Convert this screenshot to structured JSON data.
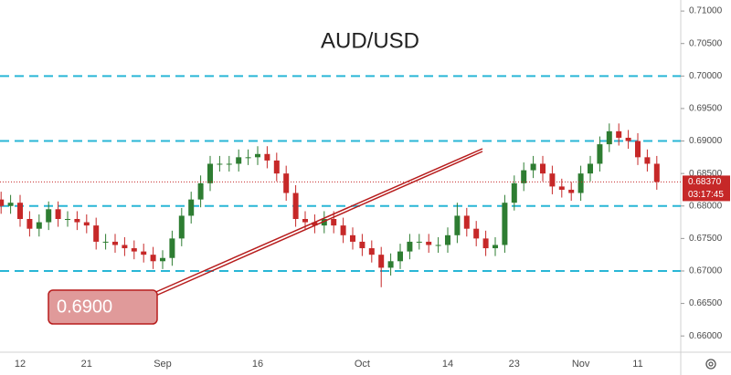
{
  "chart_data": {
    "type": "candlestick",
    "title": "AUD/USD",
    "categories": [
      null,
      null,
      "12",
      null,
      null,
      null,
      null,
      null,
      null,
      "21",
      null,
      null,
      null,
      null,
      null,
      null,
      null,
      "Sep",
      null,
      null,
      null,
      null,
      null,
      null,
      null,
      null,
      null,
      "16",
      null,
      null,
      null,
      null,
      null,
      null,
      null,
      null,
      null,
      null,
      "Oct",
      null,
      null,
      null,
      null,
      null,
      null,
      null,
      null,
      "14",
      null,
      null,
      null,
      null,
      null,
      null,
      "23",
      null,
      null,
      null,
      null,
      null,
      null,
      "Nov",
      null,
      null,
      null,
      null,
      null,
      "11",
      null,
      null
    ],
    "open": [
      0.681,
      0.68,
      0.6805,
      0.678,
      0.6765,
      0.6775,
      0.6795,
      0.678,
      0.678,
      0.6775,
      0.677,
      0.6745,
      0.6745,
      0.674,
      0.6735,
      0.673,
      0.6725,
      0.6715,
      0.672,
      0.675,
      0.6785,
      0.681,
      0.6835,
      0.6865,
      0.6865,
      0.6865,
      0.6875,
      0.6875,
      0.688,
      0.687,
      0.685,
      0.682,
      0.678,
      0.6775,
      0.677,
      0.678,
      0.677,
      0.6755,
      0.6745,
      0.6735,
      0.6725,
      0.6705,
      0.6715,
      0.673,
      0.6745,
      0.6745,
      0.674,
      0.674,
      0.6755,
      0.6785,
      0.6765,
      0.675,
      0.6735,
      0.674,
      0.6805,
      0.6835,
      0.6855,
      0.6865,
      0.685,
      0.683,
      0.6825,
      0.682,
      0.685,
      0.6865,
      0.6895,
      0.6915,
      0.6905,
      0.69,
      0.6875,
      0.6865
    ],
    "high": [
      0.6822,
      0.6817,
      0.6817,
      0.6792,
      0.6787,
      0.6807,
      0.6807,
      0.6792,
      0.6792,
      0.6787,
      0.6782,
      0.6757,
      0.6757,
      0.6752,
      0.6747,
      0.6742,
      0.6737,
      0.6732,
      0.6762,
      0.6797,
      0.6822,
      0.6847,
      0.6877,
      0.6877,
      0.6877,
      0.6887,
      0.6887,
      0.6892,
      0.6892,
      0.6882,
      0.6862,
      0.6832,
      0.6792,
      0.6787,
      0.6792,
      0.6792,
      0.6782,
      0.6767,
      0.6757,
      0.6747,
      0.6737,
      0.6727,
      0.6742,
      0.6757,
      0.6757,
      0.6757,
      0.6752,
      0.6767,
      0.6805,
      0.6797,
      0.6777,
      0.6762,
      0.6752,
      0.6817,
      0.6847,
      0.6867,
      0.6877,
      0.6877,
      0.6862,
      0.6842,
      0.6837,
      0.6862,
      0.6877,
      0.6907,
      0.6927,
      0.6927,
      0.6917,
      0.6912,
      0.6887,
      0.6877
    ],
    "low": [
      0.6788,
      0.6788,
      0.6768,
      0.6753,
      0.6753,
      0.6763,
      0.6768,
      0.6768,
      0.6763,
      0.6758,
      0.6733,
      0.6733,
      0.6728,
      0.6723,
      0.6718,
      0.6713,
      0.6703,
      0.6703,
      0.6708,
      0.6738,
      0.6773,
      0.6798,
      0.6823,
      0.6853,
      0.6853,
      0.6853,
      0.6863,
      0.6863,
      0.6858,
      0.6838,
      0.6808,
      0.6768,
      0.6763,
      0.6758,
      0.6758,
      0.6758,
      0.6743,
      0.6733,
      0.6723,
      0.6713,
      0.6675,
      0.6693,
      0.6703,
      0.6718,
      0.6733,
      0.6728,
      0.6728,
      0.6728,
      0.6743,
      0.6753,
      0.6738,
      0.6723,
      0.6723,
      0.6728,
      0.6793,
      0.6823,
      0.6843,
      0.6838,
      0.6818,
      0.6813,
      0.6808,
      0.6808,
      0.6838,
      0.6853,
      0.6883,
      0.6893,
      0.6888,
      0.6863,
      0.6853,
      0.6825
    ],
    "close": [
      0.68,
      0.6805,
      0.678,
      0.6765,
      0.6775,
      0.6795,
      0.678,
      0.678,
      0.6775,
      0.677,
      0.6745,
      0.6745,
      0.674,
      0.6735,
      0.673,
      0.6725,
      0.6715,
      0.672,
      0.675,
      0.6785,
      0.681,
      0.6835,
      0.6865,
      0.6865,
      0.6865,
      0.6875,
      0.6875,
      0.688,
      0.687,
      0.685,
      0.682,
      0.678,
      0.6775,
      0.677,
      0.678,
      0.677,
      0.6755,
      0.6745,
      0.6735,
      0.6725,
      0.6705,
      0.6715,
      0.673,
      0.6745,
      0.6745,
      0.674,
      0.674,
      0.6755,
      0.6785,
      0.6765,
      0.675,
      0.6735,
      0.674,
      0.6805,
      0.6835,
      0.6855,
      0.6865,
      0.685,
      0.683,
      0.6825,
      0.682,
      0.685,
      0.6865,
      0.6895,
      0.6915,
      0.6905,
      0.69,
      0.6875,
      0.6865,
      0.6837
    ],
    "up_color": "#2e7d32",
    "down_color": "#c62828",
    "ylim": [
      0.6575,
      0.7117
    ],
    "yticks": [
      {
        "value": 0.66,
        "label": "0.66000"
      },
      {
        "value": 0.665,
        "label": "0.66500"
      },
      {
        "value": 0.67,
        "label": "0.67000"
      },
      {
        "value": 0.675,
        "label": "0.67500"
      },
      {
        "value": 0.68,
        "label": "0.68000"
      },
      {
        "value": 0.685,
        "label": "0.68500"
      },
      {
        "value": 0.69,
        "label": "0.69000"
      },
      {
        "value": 0.695,
        "label": "0.69500"
      },
      {
        "value": 0.7,
        "label": "0.70000"
      },
      {
        "value": 0.705,
        "label": "0.70500"
      },
      {
        "value": 0.71,
        "label": "0.71000"
      }
    ],
    "levels": [
      0.7,
      0.69,
      0.68,
      0.67
    ],
    "level_color": "#29b6d6",
    "last_price": {
      "value": 0.6837,
      "label": "0.68370"
    },
    "countdown": "03:17:45",
    "annotation": "0.6900"
  }
}
